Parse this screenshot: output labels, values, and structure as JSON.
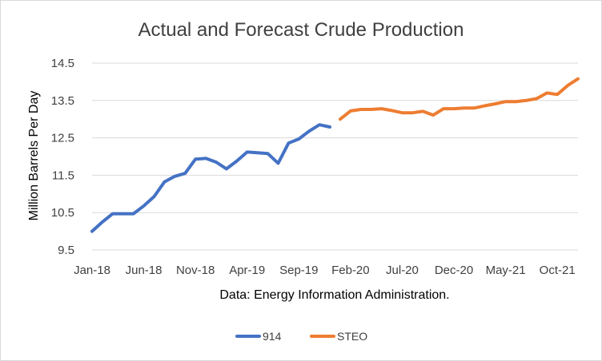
{
  "chart_data": {
    "type": "line",
    "title": "Actual and Forecast Crude Production",
    "ylabel": "Million Barrels Per Day",
    "xlabel": "Data: Energy Information Administration.",
    "ylim": [
      9.5,
      14.5
    ],
    "y_ticks": [
      "9.5",
      "10.5",
      "11.5",
      "12.5",
      "13.5",
      "14.5"
    ],
    "x_ticks": [
      "Jan-18",
      "Jun-18",
      "Nov-18",
      "Apr-19",
      "Sep-19",
      "Feb-20",
      "Jul-20",
      "Dec-20",
      "May-21",
      "Oct-21"
    ],
    "x_start": "Jan-18",
    "x_end": "Dec-21",
    "grid": true,
    "legend_position": "bottom",
    "series": [
      {
        "name": "914",
        "color": "#4472c4",
        "x": [
          "Jan-18",
          "Feb-18",
          "Mar-18",
          "Apr-18",
          "May-18",
          "Jun-18",
          "Jul-18",
          "Aug-18",
          "Sep-18",
          "Oct-18",
          "Nov-18",
          "Dec-18",
          "Jan-19",
          "Feb-19",
          "Mar-19",
          "Apr-19",
          "May-19",
          "Jun-19",
          "Jul-19",
          "Aug-19",
          "Sep-19",
          "Oct-19",
          "Nov-19",
          "Dec-19"
        ],
        "values": [
          10.0,
          10.25,
          10.47,
          10.47,
          10.47,
          10.68,
          10.93,
          11.32,
          11.47,
          11.55,
          11.93,
          11.95,
          11.85,
          11.67,
          11.88,
          12.12,
          12.1,
          12.08,
          11.82,
          12.36,
          12.47,
          12.68,
          12.85,
          12.79
        ]
      },
      {
        "name": "STEO",
        "color": "#ed7d31",
        "x": [
          "Jan-20",
          "Feb-20",
          "Mar-20",
          "Apr-20",
          "May-20",
          "Jun-20",
          "Jul-20",
          "Aug-20",
          "Sep-20",
          "Oct-20",
          "Nov-20",
          "Dec-20",
          "Jan-21",
          "Feb-21",
          "Mar-21",
          "Apr-21",
          "May-21",
          "Jun-21",
          "Jul-21",
          "Aug-21",
          "Sep-21",
          "Oct-21",
          "Nov-21",
          "Dec-21"
        ],
        "values": [
          13.0,
          13.22,
          13.26,
          13.26,
          13.28,
          13.23,
          13.17,
          13.17,
          13.21,
          13.11,
          13.28,
          13.28,
          13.3,
          13.3,
          13.36,
          13.41,
          13.47,
          13.47,
          13.5,
          13.55,
          13.7,
          13.66,
          13.9,
          14.08
        ]
      }
    ]
  }
}
